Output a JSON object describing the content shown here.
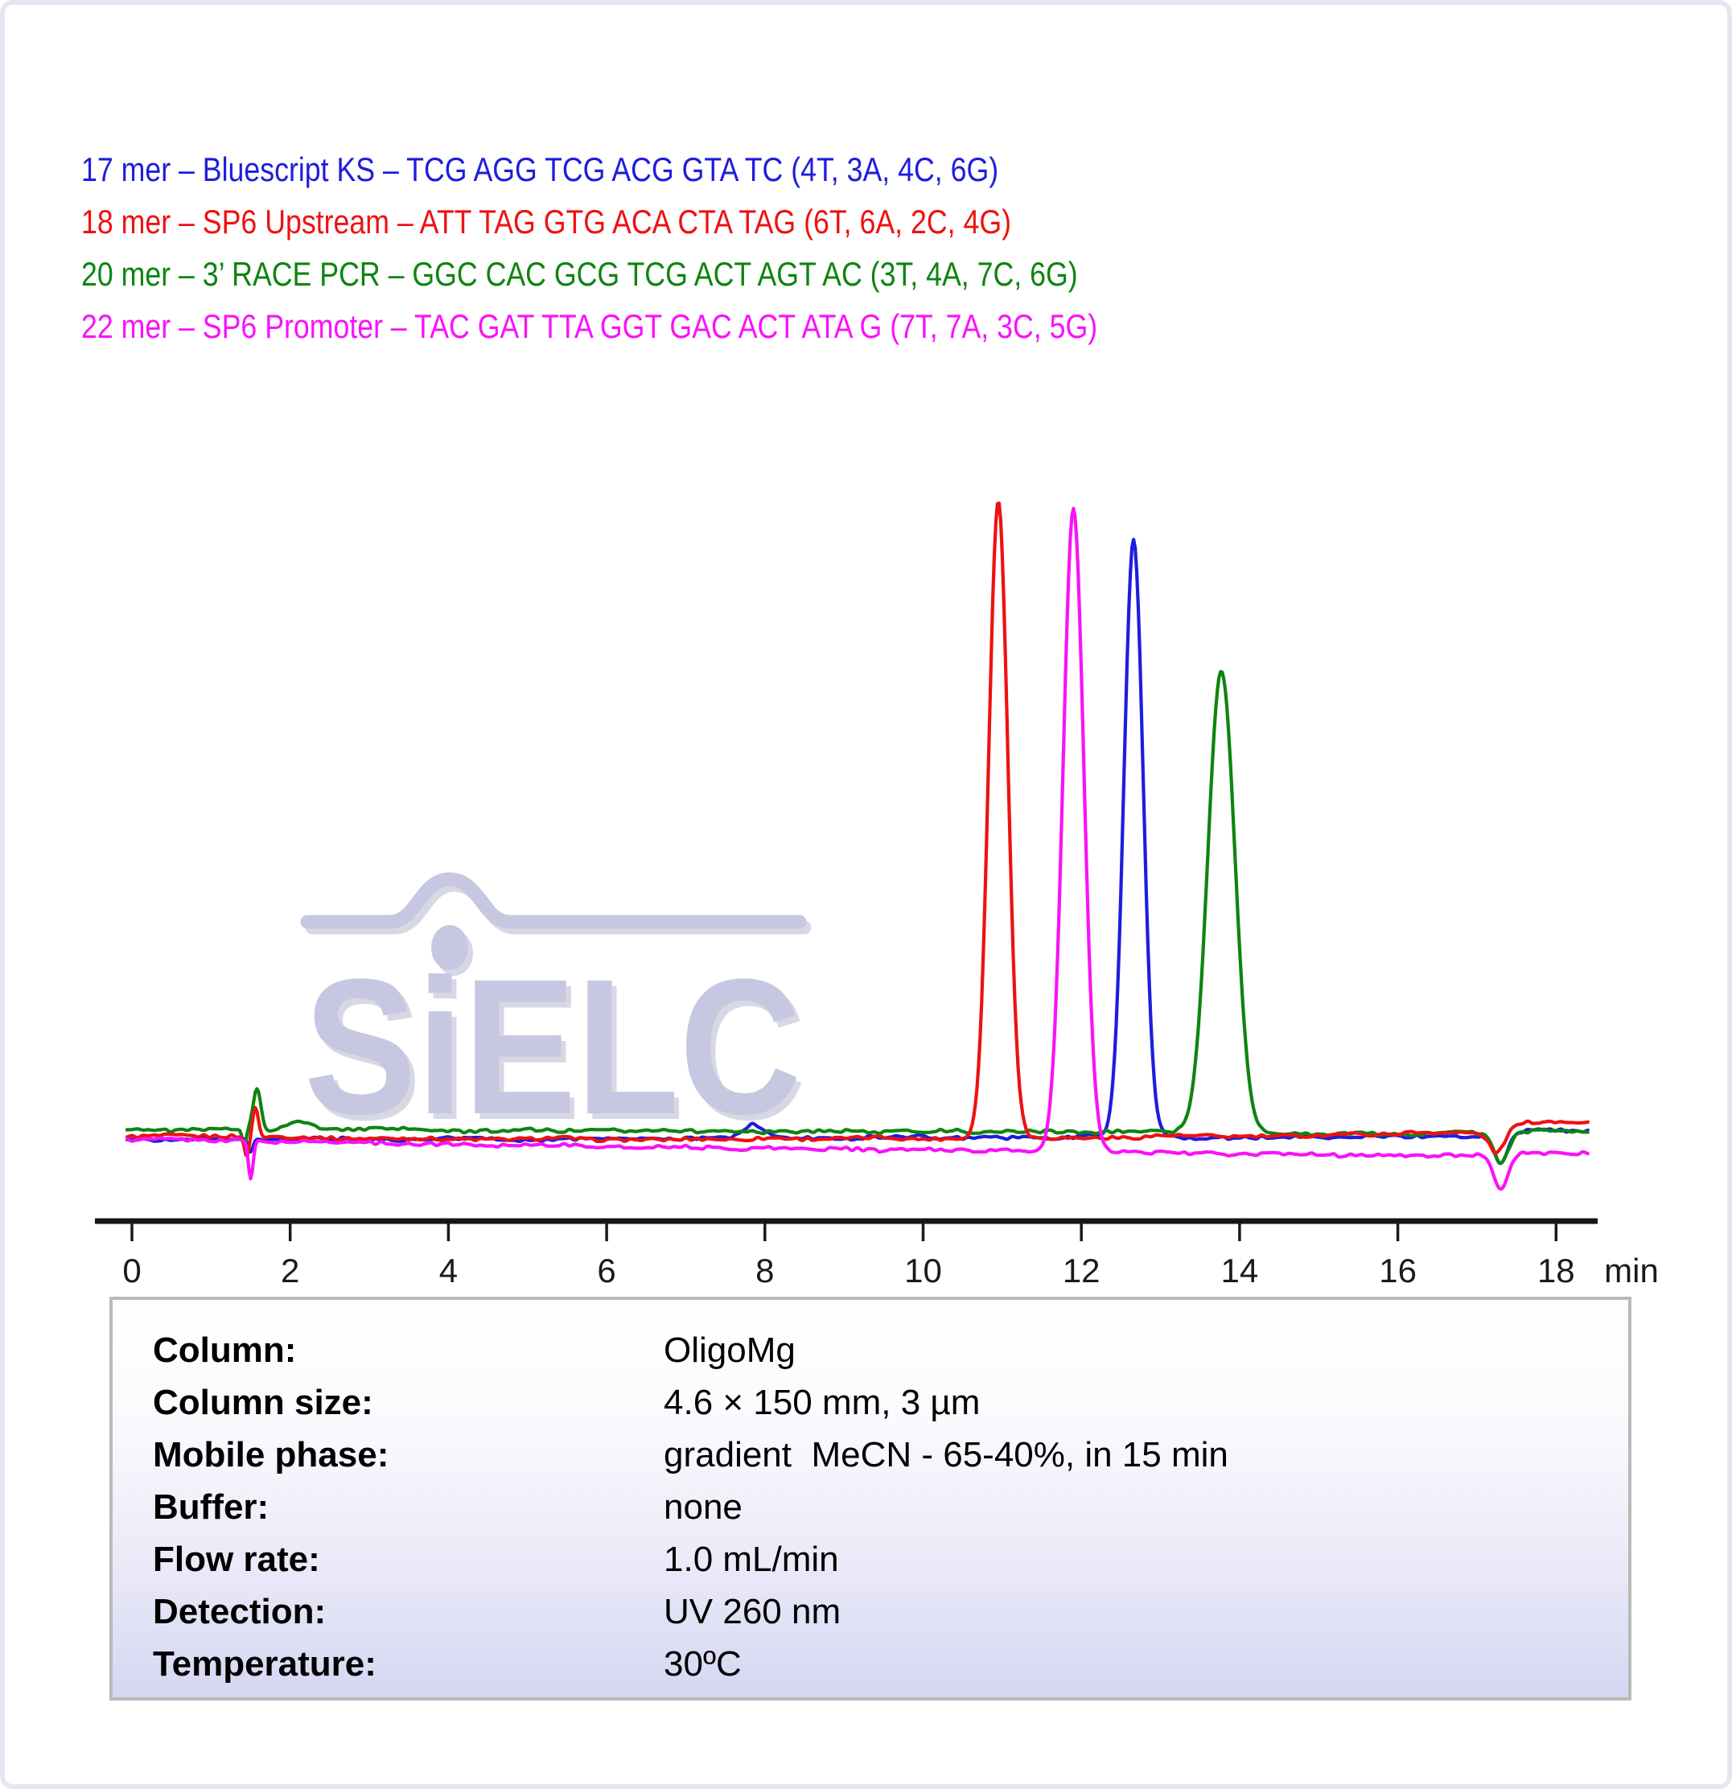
{
  "page": {
    "background": "#ffffff",
    "frame_border_color": "#e6e6f1"
  },
  "legend": {
    "items": [
      {
        "id": "17mer-bluescript-ks",
        "color": "#1d1ddd",
        "text": "17 mer – Bluescript KS – TCG AGG TCG ACG GTA TC (4T, 3A, 4C, 6G)"
      },
      {
        "id": "18mer-sp6-upstream",
        "color": "#ee1111",
        "text": "18 mer – SP6 Upstream – ATT TAG GTG ACA CTA TAG (6T, 6A, 2C, 4G)"
      },
      {
        "id": "20mer-3race-pcr",
        "color": "#0e8410",
        "text": "20 mer – 3’ RACE PCR – GGC CAC GCG TCG ACT AGT AC (3T, 4A, 7C, 6G)"
      },
      {
        "id": "22mer-sp6-promoter",
        "color": "#f912f9",
        "text": "22 mer – SP6 Promoter – TAC GAT TTA GGT GAC ACT ATA G (7T, 7A, 3C, 5G)"
      }
    ]
  },
  "watermark": {
    "text": "SiELC",
    "color": "#c7c7e2"
  },
  "chart_data": {
    "type": "line",
    "title": "",
    "x_axis": {
      "label": "min",
      "ticks": [
        0,
        2,
        4,
        6,
        8,
        10,
        12,
        14,
        16,
        18
      ],
      "range": [
        0,
        18.4
      ]
    },
    "y_axis": {
      "visible": false,
      "units": "relative UV absorbance (260 nm)"
    },
    "grid": false,
    "legend_position": "top-left-text-lines",
    "series": [
      {
        "id": "17mer-bluescript-ks",
        "name": "17 mer – Bluescript KS",
        "color": "#1d1ddd",
        "noise_seed": 3,
        "peak": {
          "rt_min": 12.66,
          "height": 0.93,
          "sigma_min": 0.12
        },
        "baseline": {
          "start": -0.004,
          "mid": 0.0,
          "end": 0.002
        },
        "features": [
          {
            "type": "gauss",
            "t": 1.5,
            "h": -0.02,
            "w": 0.03
          },
          {
            "type": "gauss",
            "t": 7.85,
            "h": 0.02,
            "w": 0.12
          },
          {
            "type": "gauss",
            "t": 17.3,
            "h": -0.042,
            "w": 0.09
          },
          {
            "type": "step",
            "t": 17.45,
            "h": 0.008,
            "w": 0.15
          }
        ]
      },
      {
        "id": "18mer-sp6-upstream",
        "name": "18 mer – SP6 Upstream",
        "color": "#ee1111",
        "noise_seed": 1,
        "peak": {
          "rt_min": 10.95,
          "height": 0.99,
          "sigma_min": 0.12
        },
        "baseline": {
          "start": 0.002,
          "mid": -0.009,
          "end": 0.01
        },
        "features": [
          {
            "type": "gauss",
            "t": 1.45,
            "h": -0.03,
            "w": 0.03
          },
          {
            "type": "gauss",
            "t": 1.56,
            "h": 0.045,
            "w": 0.035
          },
          {
            "type": "gauss",
            "t": 17.25,
            "h": -0.032,
            "w": 0.09
          },
          {
            "type": "step",
            "t": 17.45,
            "h": 0.014,
            "w": 0.15
          }
        ]
      },
      {
        "id": "20mer-3race-pcr",
        "name": "20 mer – 3’ RACE PCR",
        "color": "#0e8410",
        "noise_seed": 4,
        "peak": {
          "rt_min": 13.77,
          "height": 0.72,
          "sigma_min": 0.17
        },
        "baseline": {
          "start": 0.012,
          "mid": 0.011,
          "end": 0.004
        },
        "features": [
          {
            "type": "gauss",
            "t": 1.42,
            "h": -0.025,
            "w": 0.025
          },
          {
            "type": "gauss",
            "t": 1.58,
            "h": 0.065,
            "w": 0.05
          },
          {
            "type": "gauss",
            "t": 2.1,
            "h": 0.012,
            "w": 0.15
          },
          {
            "type": "gauss",
            "t": 17.3,
            "h": -0.045,
            "w": 0.09
          },
          {
            "type": "step",
            "t": 17.45,
            "h": 0.006,
            "w": 0.15
          }
        ]
      },
      {
        "id": "22mer-sp6-promoter",
        "name": "22 mer – SP6 Promoter",
        "color": "#f912f9",
        "noise_seed": 2,
        "peak": {
          "rt_min": 11.9,
          "height": 1.0,
          "sigma_min": 0.13
        },
        "baseline": {
          "start": -0.002,
          "mid": -0.022,
          "end": -0.03
        },
        "features": [
          {
            "type": "gauss",
            "t": 1.5,
            "h": -0.06,
            "w": 0.03
          },
          {
            "type": "gauss",
            "t": 17.3,
            "h": -0.055,
            "w": 0.09
          },
          {
            "type": "step",
            "t": 17.45,
            "h": 0.006,
            "w": 0.15
          }
        ]
      }
    ]
  },
  "method_table": {
    "rows": [
      {
        "label": "Column:",
        "value": "OligoMg"
      },
      {
        "label": "Column size:",
        "value": "4.6 × 150 mm, 3 µm"
      },
      {
        "label": "Mobile phase:",
        "value": "gradient  MeCN - 65-40%, in 15 min"
      },
      {
        "label": "Buffer:",
        "value": "none"
      },
      {
        "label": "Flow rate:",
        "value": "1.0 mL/min"
      },
      {
        "label": "Detection:",
        "value": "UV 260 nm"
      },
      {
        "label": "Temperature:",
        "value": "30ºC"
      }
    ]
  }
}
